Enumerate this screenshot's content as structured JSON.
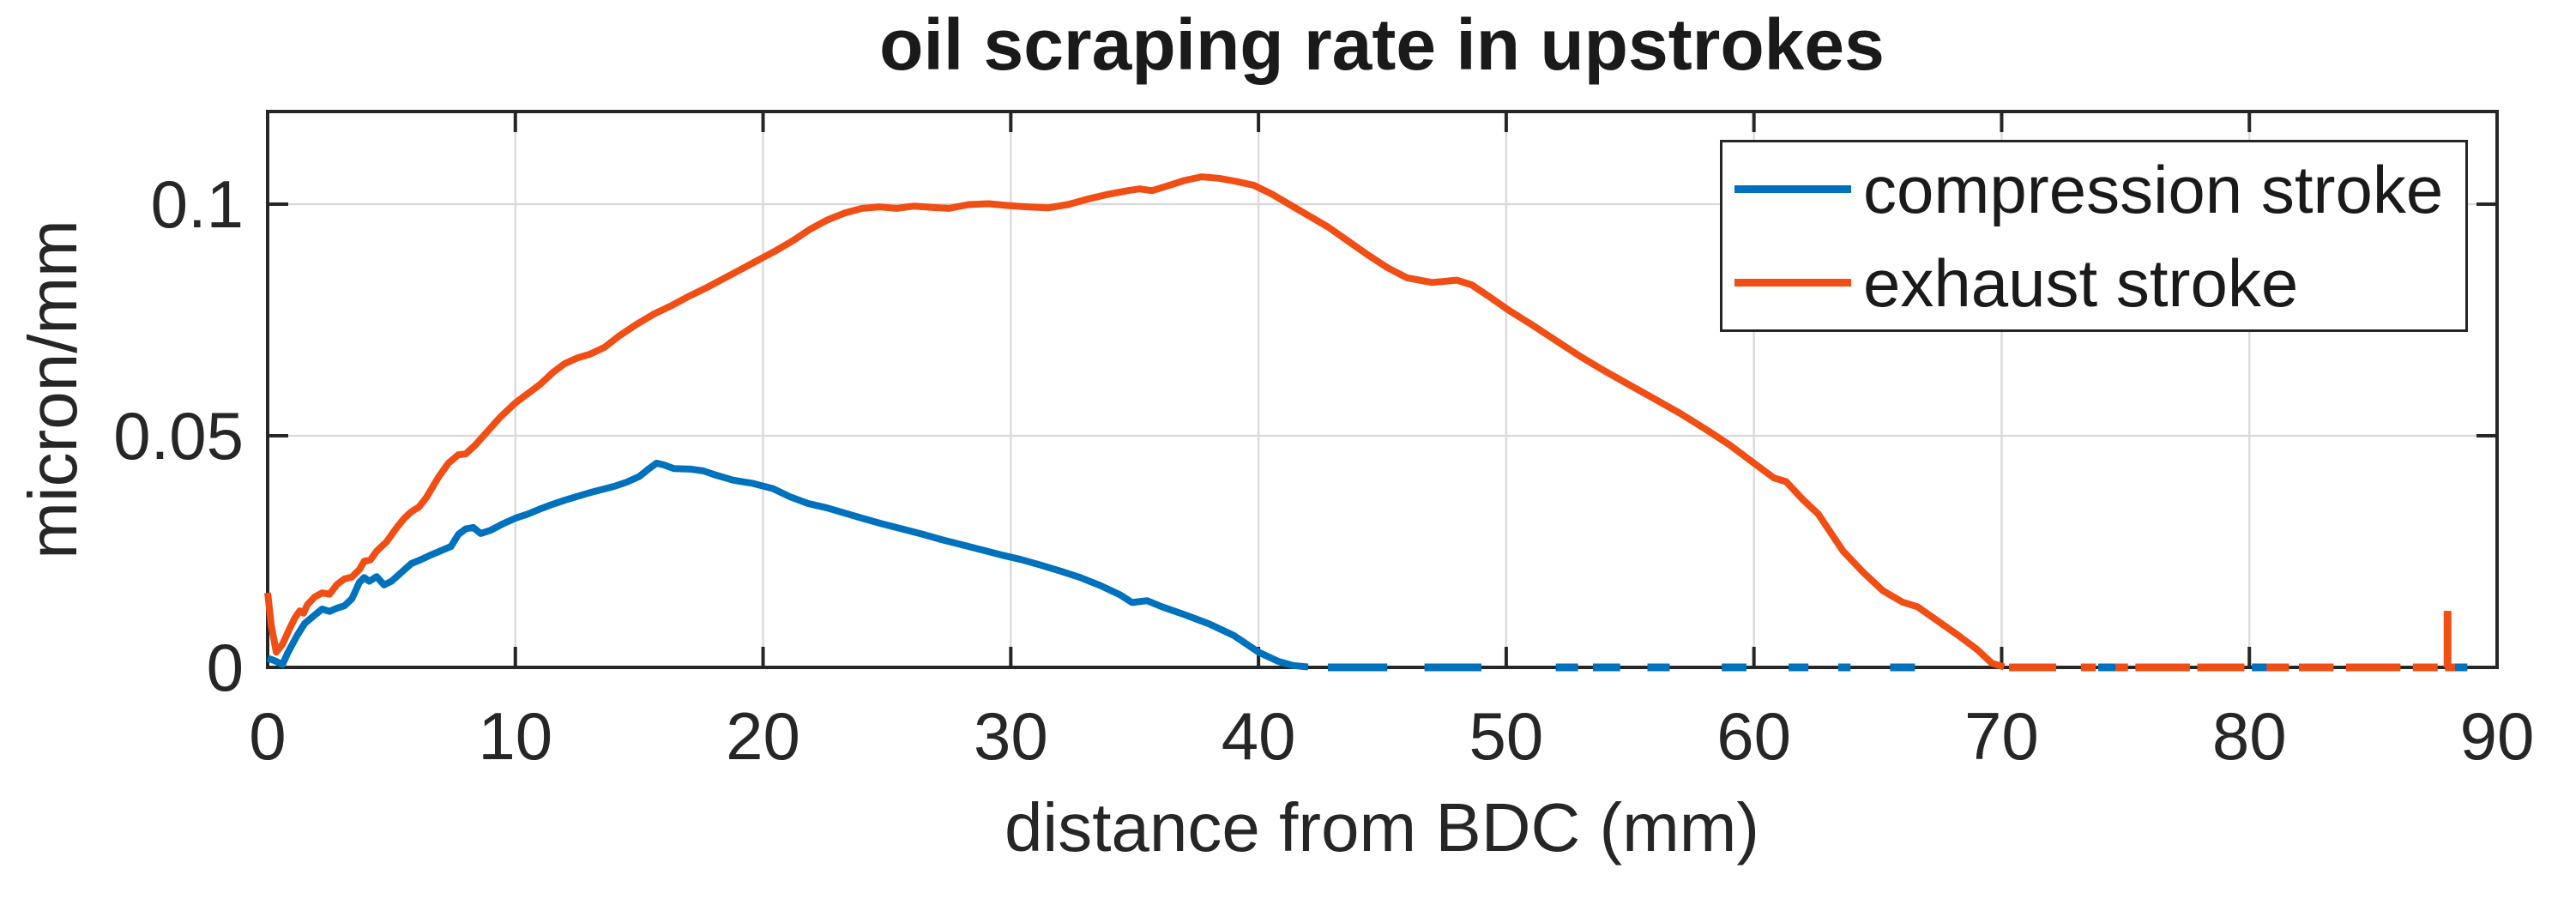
{
  "title": "oil scraping rate in upstrokes",
  "xlabel": "distance from BDC (mm)",
  "ylabel": "micron/mm",
  "colors": {
    "compression": "#0072BD",
    "exhaust": "#F04E14",
    "axis": "#262626",
    "grid": "#DBDBDB",
    "background": "#FFFFFF"
  },
  "legend": {
    "items": [
      {
        "label": "compression stroke",
        "color_key": "compression"
      },
      {
        "label": "exhaust stroke",
        "color_key": "exhaust"
      }
    ]
  },
  "chart_data": {
    "type": "line",
    "title": "oil scraping rate in upstrokes",
    "xlabel": "distance from BDC (mm)",
    "ylabel": "micron/mm",
    "xlim": [
      0,
      90
    ],
    "ylim": [
      0,
      0.12
    ],
    "x_ticks": [
      0,
      10,
      20,
      30,
      40,
      50,
      60,
      70,
      80,
      90
    ],
    "y_ticks": [
      0,
      0.05,
      0.1
    ],
    "y_tick_labels": [
      "0",
      "0.05",
      "0.1"
    ],
    "grid": true,
    "legend_position": "northeast",
    "series": [
      {
        "name": "compression stroke",
        "color_key": "compression",
        "points": [
          [
            0,
            0.002
          ],
          [
            0.3,
            0.0014
          ],
          [
            0.6,
            0.0006
          ],
          [
            0.8,
            0.003
          ],
          [
            1.0,
            0.005
          ],
          [
            1.2,
            0.007
          ],
          [
            1.5,
            0.0095
          ],
          [
            1.9,
            0.0113
          ],
          [
            2.2,
            0.0126
          ],
          [
            2.5,
            0.0121
          ],
          [
            2.8,
            0.0128
          ],
          [
            3.1,
            0.0133
          ],
          [
            3.4,
            0.0148
          ],
          [
            3.7,
            0.0183
          ],
          [
            3.9,
            0.0194
          ],
          [
            4.1,
            0.0186
          ],
          [
            4.4,
            0.0196
          ],
          [
            4.7,
            0.0178
          ],
          [
            5.0,
            0.0186
          ],
          [
            5.4,
            0.0205
          ],
          [
            5.8,
            0.0224
          ],
          [
            6.2,
            0.0233
          ],
          [
            6.6,
            0.0243
          ],
          [
            7.0,
            0.0252
          ],
          [
            7.4,
            0.0261
          ],
          [
            7.7,
            0.0287
          ],
          [
            8.0,
            0.0299
          ],
          [
            8.3,
            0.0302
          ],
          [
            8.6,
            0.0289
          ],
          [
            9.0,
            0.0296
          ],
          [
            9.5,
            0.031
          ],
          [
            10.0,
            0.0322
          ],
          [
            10.5,
            0.0331
          ],
          [
            11.0,
            0.0342
          ],
          [
            11.5,
            0.0352
          ],
          [
            12.0,
            0.0361
          ],
          [
            12.5,
            0.0369
          ],
          [
            13.0,
            0.0377
          ],
          [
            13.5,
            0.0384
          ],
          [
            14.0,
            0.0391
          ],
          [
            14.5,
            0.04
          ],
          [
            15.0,
            0.0412
          ],
          [
            15.4,
            0.0429
          ],
          [
            15.7,
            0.0441
          ],
          [
            16.0,
            0.0437
          ],
          [
            16.4,
            0.0429
          ],
          [
            17.1,
            0.0428
          ],
          [
            17.6,
            0.0424
          ],
          [
            18.1,
            0.0415
          ],
          [
            18.8,
            0.0404
          ],
          [
            19.6,
            0.0397
          ],
          [
            20.4,
            0.0386
          ],
          [
            21.1,
            0.0368
          ],
          [
            21.8,
            0.0354
          ],
          [
            22.6,
            0.0344
          ],
          [
            23.3,
            0.0333
          ],
          [
            24.0,
            0.0322
          ],
          [
            24.8,
            0.031
          ],
          [
            25.6,
            0.0299
          ],
          [
            26.4,
            0.0288
          ],
          [
            27.2,
            0.0276
          ],
          [
            28.0,
            0.0265
          ],
          [
            28.8,
            0.0254
          ],
          [
            29.6,
            0.0243
          ],
          [
            30.4,
            0.0233
          ],
          [
            31.2,
            0.0221
          ],
          [
            32.0,
            0.0208
          ],
          [
            32.8,
            0.0194
          ],
          [
            33.6,
            0.0177
          ],
          [
            34.4,
            0.0157
          ],
          [
            34.9,
            0.014
          ],
          [
            35.5,
            0.0144
          ],
          [
            36.1,
            0.0131
          ],
          [
            37.0,
            0.0114
          ],
          [
            38.0,
            0.0094
          ],
          [
            39.0,
            0.0069
          ],
          [
            40.0,
            0.0033
          ],
          [
            40.8,
            0.0013
          ],
          [
            41.4,
            0.0004
          ],
          [
            42.0,
            0.0001
          ]
        ],
        "zero_dashes_mm": [
          [
            42.8,
            45.2
          ],
          [
            46.7,
            49.0
          ],
          [
            52.0,
            52.9
          ],
          [
            53.5,
            54.6
          ],
          [
            55.7,
            56.6
          ],
          [
            58.7,
            59.7
          ],
          [
            61.4,
            62.2
          ],
          [
            63.4,
            63.9
          ],
          [
            65.5,
            66.5
          ],
          [
            73.9,
            74.6
          ],
          [
            80.1,
            80.7
          ],
          [
            88.3,
            88.8
          ]
        ]
      },
      {
        "name": "exhaust stroke",
        "color_key": "exhaust",
        "points": [
          [
            0,
            0.0161
          ],
          [
            0.15,
            0.009
          ],
          [
            0.35,
            0.0033
          ],
          [
            0.6,
            0.005
          ],
          [
            0.9,
            0.0085
          ],
          [
            1.1,
            0.0107
          ],
          [
            1.3,
            0.0122
          ],
          [
            1.45,
            0.0117
          ],
          [
            1.6,
            0.0135
          ],
          [
            1.9,
            0.0152
          ],
          [
            2.2,
            0.0161
          ],
          [
            2.5,
            0.0158
          ],
          [
            2.8,
            0.0179
          ],
          [
            3.1,
            0.0191
          ],
          [
            3.4,
            0.0195
          ],
          [
            3.7,
            0.0211
          ],
          [
            3.9,
            0.0229
          ],
          [
            4.15,
            0.0232
          ],
          [
            4.4,
            0.0251
          ],
          [
            4.8,
            0.0271
          ],
          [
            5.2,
            0.0301
          ],
          [
            5.5,
            0.0321
          ],
          [
            5.8,
            0.0336
          ],
          [
            6.1,
            0.0346
          ],
          [
            6.4,
            0.0366
          ],
          [
            6.9,
            0.0411
          ],
          [
            7.3,
            0.0441
          ],
          [
            7.7,
            0.0459
          ],
          [
            8.0,
            0.0461
          ],
          [
            8.4,
            0.0481
          ],
          [
            8.9,
            0.0511
          ],
          [
            9.4,
            0.0541
          ],
          [
            10.0,
            0.0571
          ],
          [
            10.5,
            0.0591
          ],
          [
            11.0,
            0.0611
          ],
          [
            11.5,
            0.0636
          ],
          [
            12.0,
            0.0656
          ],
          [
            12.5,
            0.0668
          ],
          [
            13.0,
            0.0676
          ],
          [
            13.6,
            0.0691
          ],
          [
            14.2,
            0.0716
          ],
          [
            14.9,
            0.0741
          ],
          [
            15.6,
            0.0763
          ],
          [
            16.3,
            0.0781
          ],
          [
            17.0,
            0.0801
          ],
          [
            17.7,
            0.0819
          ],
          [
            18.4,
            0.0839
          ],
          [
            19.1,
            0.0859
          ],
          [
            19.8,
            0.0879
          ],
          [
            20.5,
            0.0899
          ],
          [
            21.2,
            0.0921
          ],
          [
            21.9,
            0.0946
          ],
          [
            22.6,
            0.0966
          ],
          [
            23.3,
            0.0981
          ],
          [
            24.0,
            0.0991
          ],
          [
            24.7,
            0.0994
          ],
          [
            25.4,
            0.0991
          ],
          [
            26.1,
            0.0996
          ],
          [
            26.8,
            0.0993
          ],
          [
            27.5,
            0.0991
          ],
          [
            28.3,
            0.0999
          ],
          [
            29.1,
            0.1001
          ],
          [
            29.9,
            0.0997
          ],
          [
            30.7,
            0.0994
          ],
          [
            31.5,
            0.0992
          ],
          [
            32.3,
            0.0999
          ],
          [
            33.1,
            0.1011
          ],
          [
            33.9,
            0.1021
          ],
          [
            34.7,
            0.1029
          ],
          [
            35.2,
            0.1033
          ],
          [
            35.7,
            0.1029
          ],
          [
            36.3,
            0.1039
          ],
          [
            37.0,
            0.1051
          ],
          [
            37.7,
            0.1059
          ],
          [
            38.4,
            0.1056
          ],
          [
            39.1,
            0.1049
          ],
          [
            39.8,
            0.1041
          ],
          [
            40.5,
            0.1023
          ],
          [
            41.2,
            0.1001
          ],
          [
            42.0,
            0.0976
          ],
          [
            42.8,
            0.0951
          ],
          [
            43.6,
            0.0921
          ],
          [
            44.4,
            0.0891
          ],
          [
            45.2,
            0.0863
          ],
          [
            46.0,
            0.0841
          ],
          [
            47.0,
            0.0831
          ],
          [
            48.0,
            0.0836
          ],
          [
            48.6,
            0.0826
          ],
          [
            49.3,
            0.0801
          ],
          [
            50.1,
            0.0771
          ],
          [
            51.0,
            0.0741
          ],
          [
            52.0,
            0.0706
          ],
          [
            53.0,
            0.0671
          ],
          [
            54.0,
            0.0639
          ],
          [
            55.0,
            0.0609
          ],
          [
            56.0,
            0.0579
          ],
          [
            57.0,
            0.0549
          ],
          [
            58.0,
            0.0516
          ],
          [
            59.0,
            0.0481
          ],
          [
            60.0,
            0.0441
          ],
          [
            60.8,
            0.0409
          ],
          [
            61.3,
            0.0401
          ],
          [
            62.0,
            0.0361
          ],
          [
            62.6,
            0.0331
          ],
          [
            63.6,
            0.0251
          ],
          [
            64.4,
            0.0206
          ],
          [
            65.2,
            0.0166
          ],
          [
            66.0,
            0.0141
          ],
          [
            66.6,
            0.0131
          ],
          [
            67.4,
            0.0101
          ],
          [
            68.2,
            0.0071
          ],
          [
            69.0,
            0.0039
          ],
          [
            69.6,
            0.0009
          ],
          [
            70.1,
            0.0001
          ]
        ],
        "zero_dashes_mm": [
          [
            70.3,
            72.2
          ],
          [
            73.2,
            73.8
          ],
          [
            74.6,
            75.1
          ],
          [
            75.4,
            77.6
          ],
          [
            77.9,
            79.8
          ],
          [
            80.7,
            81.6
          ],
          [
            82.0,
            83.4
          ],
          [
            83.9,
            86.1
          ],
          [
            86.6,
            87.6
          ],
          [
            87.9,
            88.3
          ]
        ],
        "end_spike": {
          "x": 88.0,
          "top": 0.0122
        }
      }
    ]
  }
}
